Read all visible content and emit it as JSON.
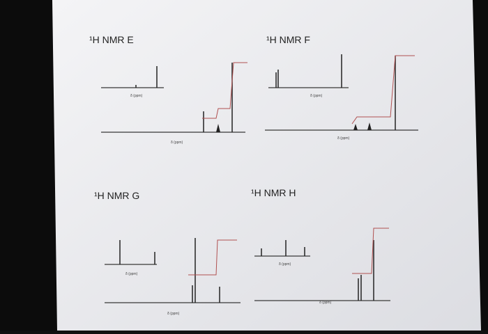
{
  "spectra": [
    {
      "title": "¹H NMR E",
      "axis_label": "δ (ppm)",
      "inset_axis_label": "δ (ppm)"
    },
    {
      "title": "¹H NMR F",
      "axis_label": "δ (ppm)",
      "inset_axis_label": "δ (ppm)"
    },
    {
      "title": "¹H NMR G",
      "axis_label": "δ (ppm)",
      "inset_axis_label": "δ (ppm)"
    },
    {
      "title": "¹H NMR H",
      "axis_label": "δ (ppm)",
      "inset_axis_label": "δ (ppm)"
    }
  ]
}
